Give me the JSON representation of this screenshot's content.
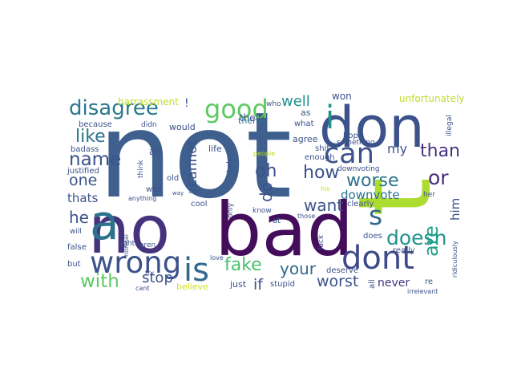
{
  "wordcloud": {
    "words": [
      {
        "text": "not",
        "color": "#3f5f8f"
      },
      {
        "text": "no",
        "color": "#46337e"
      },
      {
        "text": "bad",
        "color": "#440d5b"
      },
      {
        "text": "don",
        "color": "#3b528b"
      },
      {
        "text": "t",
        "color": "#addc30"
      },
      {
        "text": "a",
        "color": "#2c728e"
      },
      {
        "text": "i",
        "color": "#21918c"
      },
      {
        "text": "wrong",
        "color": "#3b528b"
      },
      {
        "text": "is",
        "color": "#31688e"
      },
      {
        "text": "dont",
        "color": "#3e4a89"
      },
      {
        "text": "disagree",
        "color": "#2a788e"
      },
      {
        "text": "good",
        "color": "#5ec962"
      },
      {
        "text": "can",
        "color": "#3b528b"
      },
      {
        "text": "s",
        "color": "#31688e"
      },
      {
        "text": "name",
        "color": "#3b528b"
      },
      {
        "text": "like",
        "color": "#2c728e"
      },
      {
        "text": "how",
        "color": "#3b528b"
      },
      {
        "text": "oh",
        "color": "#3b528b"
      },
      {
        "text": "than",
        "color": "#46337e"
      },
      {
        "text": "worse",
        "color": "#2c728e"
      },
      {
        "text": "or",
        "color": "#472d7b"
      },
      {
        "text": "one",
        "color": "#3b528b"
      },
      {
        "text": "want",
        "color": "#3b528b"
      },
      {
        "text": "he",
        "color": "#3b528b"
      },
      {
        "text": "thats",
        "color": "#3b528b"
      },
      {
        "text": "doesn",
        "color": "#21918c"
      },
      {
        "text": "are",
        "color": "#1fa187"
      },
      {
        "text": "fake",
        "color": "#4ac16d"
      },
      {
        "text": "your",
        "color": "#31688e"
      },
      {
        "text": "with",
        "color": "#5ec962"
      },
      {
        "text": "stop",
        "color": "#3b528b"
      },
      {
        "text": "worst",
        "color": "#3b528b"
      },
      {
        "text": "if",
        "color": "#3b528b"
      },
      {
        "text": "never",
        "color": "#46337e"
      },
      {
        "text": "well",
        "color": "#21918c"
      },
      {
        "text": "my",
        "color": "#3b528b"
      },
      {
        "text": "downvote",
        "color": "#2c728e"
      },
      {
        "text": "do",
        "color": "#3b528b"
      },
      {
        "text": "cannot",
        "color": "#3b528b"
      },
      {
        "text": "him",
        "color": "#3b528b"
      },
      {
        "text": "unfortunately",
        "color": "#bddf26"
      },
      {
        "text": "harrassment",
        "color": "#c2df23"
      },
      {
        "text": "!",
        "color": "#3b528b"
      },
      {
        "text": "won",
        "color": "#3b528b"
      },
      {
        "text": "who",
        "color": "#3b528b"
      },
      {
        "text": "as",
        "color": "#3b528b"
      },
      {
        "text": "what",
        "color": "#3b528b"
      },
      {
        "text": "their",
        "color": "#3b528b"
      },
      {
        "text": "there",
        "color": "#2c728e"
      },
      {
        "text": "hope",
        "color": "#3b528b"
      },
      {
        "text": "illegal",
        "color": "#3b528b"
      },
      {
        "text": "because",
        "color": "#3b528b"
      },
      {
        "text": "didn",
        "color": "#3b528b"
      },
      {
        "text": "would",
        "color": "#3b528b"
      },
      {
        "text": "agree",
        "color": "#3b528b"
      },
      {
        "text": "something",
        "color": "#3b528b"
      },
      {
        "text": "badass",
        "color": "#3b528b"
      },
      {
        "text": "an",
        "color": "#3b528b"
      },
      {
        "text": "life",
        "color": "#3b528b"
      },
      {
        "text": "people",
        "color": "#b5de2b"
      },
      {
        "text": "shit",
        "color": "#3b528b"
      },
      {
        "text": "enough",
        "color": "#3b528b"
      },
      {
        "text": "justified",
        "color": "#3b528b"
      },
      {
        "text": "think",
        "color": "#3b528b"
      },
      {
        "text": "help",
        "color": "#3b528b"
      },
      {
        "text": "downvoting",
        "color": "#3b528b"
      },
      {
        "text": "old",
        "color": "#3b528b"
      },
      {
        "text": "was",
        "color": "#3b528b"
      },
      {
        "text": "her",
        "color": "#3b528b"
      },
      {
        "text": "so",
        "color": "#3b528b"
      },
      {
        "text": "his",
        "color": "#c8e020"
      },
      {
        "text": "cool",
        "color": "#3b528b"
      },
      {
        "text": "anything",
        "color": "#3b528b"
      },
      {
        "text": "way",
        "color": "#3b528b"
      },
      {
        "text": "clearly",
        "color": "#3b528b"
      },
      {
        "text": "know",
        "color": "#3b528b"
      },
      {
        "text": "only",
        "color": "#3b528b"
      },
      {
        "text": "will",
        "color": "#3b528b"
      },
      {
        "text": "at",
        "color": "#3b528b"
      },
      {
        "text": "those",
        "color": "#3b528b"
      },
      {
        "text": "false",
        "color": "#3b528b"
      },
      {
        "text": "right",
        "color": "#3b528b"
      },
      {
        "text": "aren",
        "color": "#3b528b"
      },
      {
        "text": "normal",
        "color": "#3b528b"
      },
      {
        "text": "does",
        "color": "#3b528b"
      },
      {
        "text": "really",
        "color": "#3b528b"
      },
      {
        "text": "lack",
        "color": "#3b528b"
      },
      {
        "text": "but",
        "color": "#3b528b"
      },
      {
        "text": "love",
        "color": "#3b528b"
      },
      {
        "text": "deserve",
        "color": "#3b528b"
      },
      {
        "text": "all",
        "color": "#3b528b"
      },
      {
        "text": "ridiculously",
        "color": "#3b528b"
      },
      {
        "text": "try",
        "color": "#3b528b"
      },
      {
        "text": "just",
        "color": "#3b528b"
      },
      {
        "text": "stupid",
        "color": "#3b528b"
      },
      {
        "text": "re",
        "color": "#3b528b"
      },
      {
        "text": "believe",
        "color": "#d2e21b"
      },
      {
        "text": "cant",
        "color": "#3b528b"
      },
      {
        "text": "irrelevant",
        "color": "#3b528b"
      }
    ]
  }
}
